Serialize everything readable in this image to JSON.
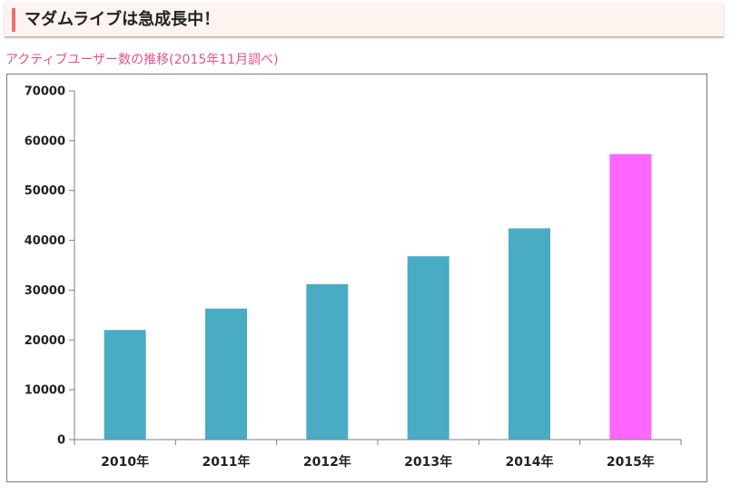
{
  "heading": {
    "title": "マダムライブは急成長中！"
  },
  "chart_data": {
    "type": "bar",
    "title": "アクティブユーザー数の推移(2015年11月調べ)",
    "xlabel": "",
    "ylabel": "",
    "categories": [
      "2010年",
      "2011年",
      "2012年",
      "2013年",
      "2014年",
      "2015年"
    ],
    "values": [
      22000,
      26300,
      31200,
      36800,
      42400,
      57300
    ],
    "ylim": [
      0,
      70000
    ],
    "yticks": [
      0,
      10000,
      20000,
      30000,
      40000,
      50000,
      60000,
      70000
    ],
    "grid": false,
    "legend": "none",
    "bar_colors": [
      "#4aabc5",
      "#4aabc5",
      "#4aabc5",
      "#4aabc5",
      "#4aabc5",
      "#ff66ff"
    ],
    "axis_color": "#7f7f7f"
  }
}
